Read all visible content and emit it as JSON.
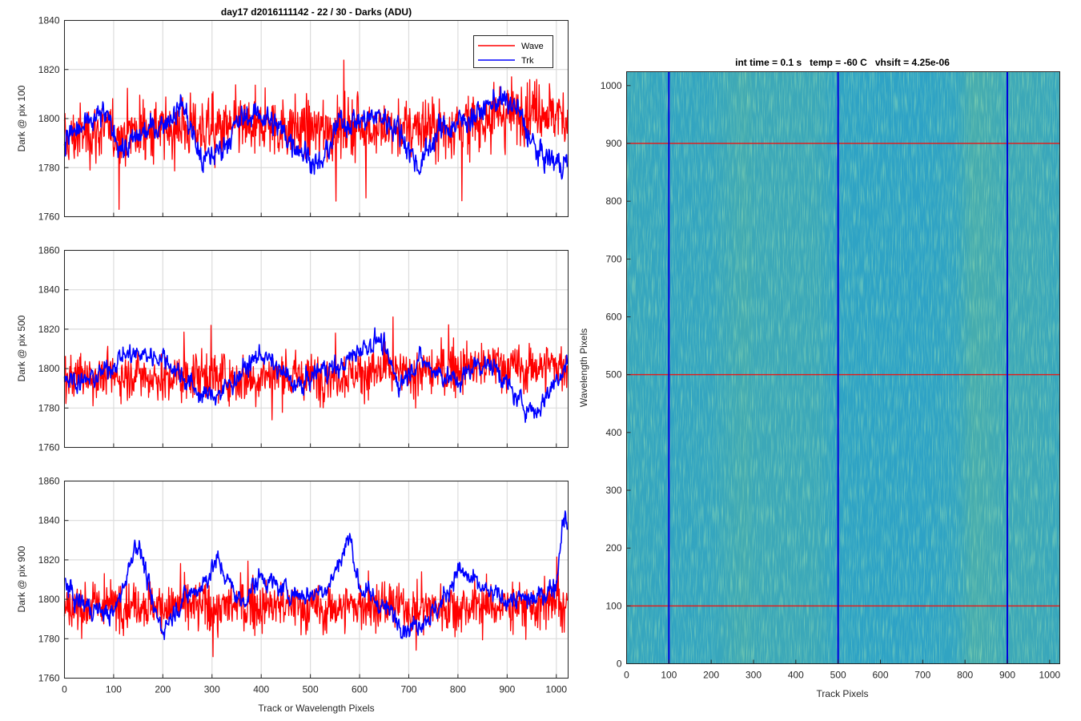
{
  "figure_title": "day17 d2016111142 - 22 / 30 - Darks (ADU)",
  "xlabel": "Track or Wavelength Pixels",
  "colors": {
    "wave": "#ff0000",
    "trk": "#0000ff"
  },
  "legend": {
    "position": "top-right",
    "entries": [
      "Wave",
      "Trk"
    ]
  },
  "chart_data": [
    {
      "type": "line",
      "ylabel": "Dark @ pix 100",
      "xlim": [
        0,
        1024
      ],
      "ylim": [
        1760,
        1840
      ],
      "xticks": [
        0,
        100,
        200,
        300,
        400,
        500,
        600,
        700,
        800,
        900,
        1000
      ],
      "yticks": [
        1760,
        1780,
        1800,
        1820,
        1840
      ],
      "grid": true,
      "series": [
        {
          "name": "Wave",
          "color": "#ff0000",
          "x": [
            0,
            40,
            80,
            120,
            160,
            200,
            240,
            280,
            320,
            360,
            400,
            440,
            480,
            520,
            560,
            600,
            640,
            680,
            720,
            760,
            800,
            840,
            880,
            920,
            960,
            1000,
            1023
          ],
          "y": [
            1791,
            1794,
            1795,
            1793,
            1796,
            1795,
            1797,
            1796,
            1795,
            1797,
            1796,
            1797,
            1796,
            1795,
            1796,
            1797,
            1796,
            1795,
            1797,
            1796,
            1797,
            1799,
            1802,
            1803,
            1804,
            1802,
            1800
          ]
        },
        {
          "name": "Trk",
          "color": "#0000ff",
          "x": [
            0,
            40,
            80,
            120,
            160,
            200,
            240,
            280,
            320,
            360,
            400,
            440,
            480,
            520,
            560,
            600,
            640,
            680,
            720,
            760,
            800,
            840,
            880,
            920,
            960,
            1000,
            1023
          ],
          "y": [
            1792,
            1796,
            1802,
            1787,
            1794,
            1798,
            1806,
            1782,
            1788,
            1800,
            1802,
            1795,
            1788,
            1780,
            1799,
            1799,
            1801,
            1796,
            1780,
            1795,
            1798,
            1802,
            1808,
            1804,
            1786,
            1782,
            1782
          ]
        }
      ]
    },
    {
      "type": "line",
      "ylabel": "Dark @ pix 500",
      "xlim": [
        0,
        1024
      ],
      "ylim": [
        1760,
        1860
      ],
      "xticks": [
        0,
        100,
        200,
        300,
        400,
        500,
        600,
        700,
        800,
        900,
        1000
      ],
      "yticks": [
        1760,
        1780,
        1800,
        1820,
        1840,
        1860
      ],
      "grid": true,
      "series": [
        {
          "name": "Wave",
          "color": "#ff0000",
          "x": [
            0,
            40,
            80,
            120,
            160,
            200,
            240,
            280,
            320,
            360,
            400,
            440,
            480,
            520,
            560,
            600,
            640,
            680,
            720,
            760,
            800,
            840,
            880,
            920,
            960,
            1000,
            1023
          ],
          "y": [
            1795,
            1797,
            1796,
            1796,
            1797,
            1795,
            1796,
            1797,
            1796,
            1795,
            1796,
            1797,
            1795,
            1796,
            1797,
            1798,
            1799,
            1797,
            1798,
            1799,
            1800,
            1801,
            1802,
            1800,
            1801,
            1802,
            1800
          ]
        },
        {
          "name": "Trk",
          "color": "#0000ff",
          "x": [
            0,
            40,
            80,
            120,
            160,
            200,
            240,
            280,
            320,
            360,
            400,
            440,
            480,
            520,
            560,
            600,
            640,
            680,
            720,
            760,
            800,
            840,
            880,
            920,
            960,
            1000,
            1023
          ],
          "y": [
            1796,
            1793,
            1798,
            1807,
            1807,
            1806,
            1796,
            1786,
            1788,
            1798,
            1808,
            1798,
            1790,
            1800,
            1800,
            1810,
            1815,
            1792,
            1805,
            1798,
            1793,
            1803,
            1800,
            1784,
            1778,
            1795,
            1803
          ]
        }
      ]
    },
    {
      "type": "line",
      "ylabel": "Dark @ pix 900",
      "xlim": [
        0,
        1024
      ],
      "ylim": [
        1760,
        1860
      ],
      "xticks": [
        0,
        100,
        200,
        300,
        400,
        500,
        600,
        700,
        800,
        900,
        1000
      ],
      "yticks": [
        1760,
        1780,
        1800,
        1820,
        1840,
        1860
      ],
      "grid": true,
      "series": [
        {
          "name": "Wave",
          "color": "#ff0000",
          "x": [
            0,
            40,
            80,
            120,
            160,
            200,
            240,
            280,
            320,
            360,
            400,
            440,
            480,
            520,
            560,
            600,
            640,
            680,
            720,
            760,
            800,
            840,
            880,
            920,
            960,
            1000,
            1023
          ],
          "y": [
            1795,
            1796,
            1797,
            1798,
            1798,
            1796,
            1797,
            1797,
            1796,
            1797,
            1796,
            1797,
            1796,
            1795,
            1796,
            1797,
            1796,
            1796,
            1795,
            1797,
            1796,
            1797,
            1796,
            1797,
            1796,
            1797,
            1796
          ]
        },
        {
          "name": "Trk",
          "color": "#0000ff",
          "x": [
            0,
            20,
            60,
            100,
            130,
            145,
            160,
            180,
            200,
            240,
            280,
            310,
            340,
            360,
            400,
            440,
            470,
            500,
            540,
            580,
            600,
            640,
            700,
            760,
            800,
            860,
            900,
            960,
            1000,
            1015,
            1023
          ],
          "y": [
            1810,
            1800,
            1795,
            1792,
            1815,
            1830,
            1820,
            1795,
            1785,
            1800,
            1807,
            1820,
            1806,
            1798,
            1812,
            1805,
            1803,
            1802,
            1808,
            1832,
            1806,
            1798,
            1785,
            1795,
            1815,
            1803,
            1800,
            1800,
            1808,
            1845,
            1836
          ]
        }
      ]
    },
    {
      "type": "heatmap",
      "title": "int time = 0.1 s   temp = -60 C   vhsift = 4.25e-06",
      "xlabel": "Track Pixels",
      "ylabel": "Wavelength Pixels",
      "xlim": [
        0,
        1024
      ],
      "ylim": [
        0,
        1024
      ],
      "xticks": [
        0,
        100,
        200,
        300,
        400,
        500,
        600,
        700,
        800,
        900,
        1000
      ],
      "yticks": [
        0,
        100,
        200,
        300,
        400,
        500,
        600,
        700,
        800,
        900,
        1000
      ],
      "colormap": "parula",
      "base_color": "#2ba2c8",
      "bright_color": "#7ec27a",
      "column_brightness": {
        "x": [
          0,
          100,
          200,
          280,
          300,
          450,
          500,
          600,
          700,
          780,
          820,
          850,
          900,
          960,
          1024
        ],
        "level": [
          0.16,
          0.1,
          0.12,
          0.3,
          0.22,
          0.2,
          0.06,
          0.05,
          0.04,
          0.1,
          0.34,
          0.3,
          0.22,
          0.22,
          0.15
        ]
      },
      "vertical_marker_lines": {
        "x": [
          100,
          500,
          900
        ],
        "color": "#0000dd"
      },
      "horizontal_marker_lines": {
        "y": [
          100,
          500,
          900
        ],
        "color": "#dd2020"
      }
    }
  ]
}
